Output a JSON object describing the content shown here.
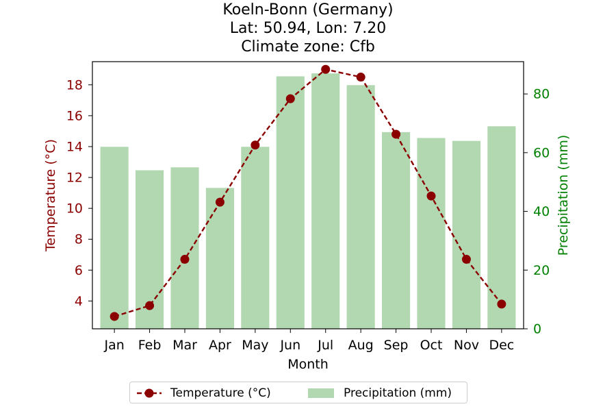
{
  "chart_data": {
    "type": "bar+line",
    "title_lines": [
      "Koeln-Bonn (Germany)",
      "Lat: 50.94, Lon: 7.20",
      "Climate zone: Cfb"
    ],
    "xlabel": "Month",
    "ylabel_left": "Temperature (°C)",
    "ylabel_right": "Precipitation (mm)",
    "categories": [
      "Jan",
      "Feb",
      "Mar",
      "Apr",
      "May",
      "Jun",
      "Jul",
      "Aug",
      "Sep",
      "Oct",
      "Nov",
      "Dec"
    ],
    "temperature": {
      "name": "Temperature (°C)",
      "values": [
        3.0,
        3.7,
        6.7,
        10.4,
        14.1,
        17.1,
        19.0,
        18.5,
        14.8,
        10.8,
        6.7,
        3.8
      ],
      "color": "#8b0000",
      "ylim": [
        2.2,
        19.5
      ],
      "ticks": [
        4,
        6,
        8,
        10,
        12,
        14,
        16,
        18
      ]
    },
    "precipitation": {
      "name": "Precipitation (mm)",
      "values": [
        62,
        54,
        55,
        48,
        62,
        86,
        87,
        83,
        67,
        65,
        64,
        69
      ],
      "color": "#b2d8b2",
      "ylim": [
        0,
        91
      ],
      "ticks": [
        0,
        20,
        40,
        60,
        80
      ]
    },
    "left_axis_color": "#8b0000",
    "right_axis_color": "#008000",
    "legend": [
      "Temperature (°C)",
      "Precipitation (mm)"
    ],
    "legend_position": "bottom-center"
  }
}
